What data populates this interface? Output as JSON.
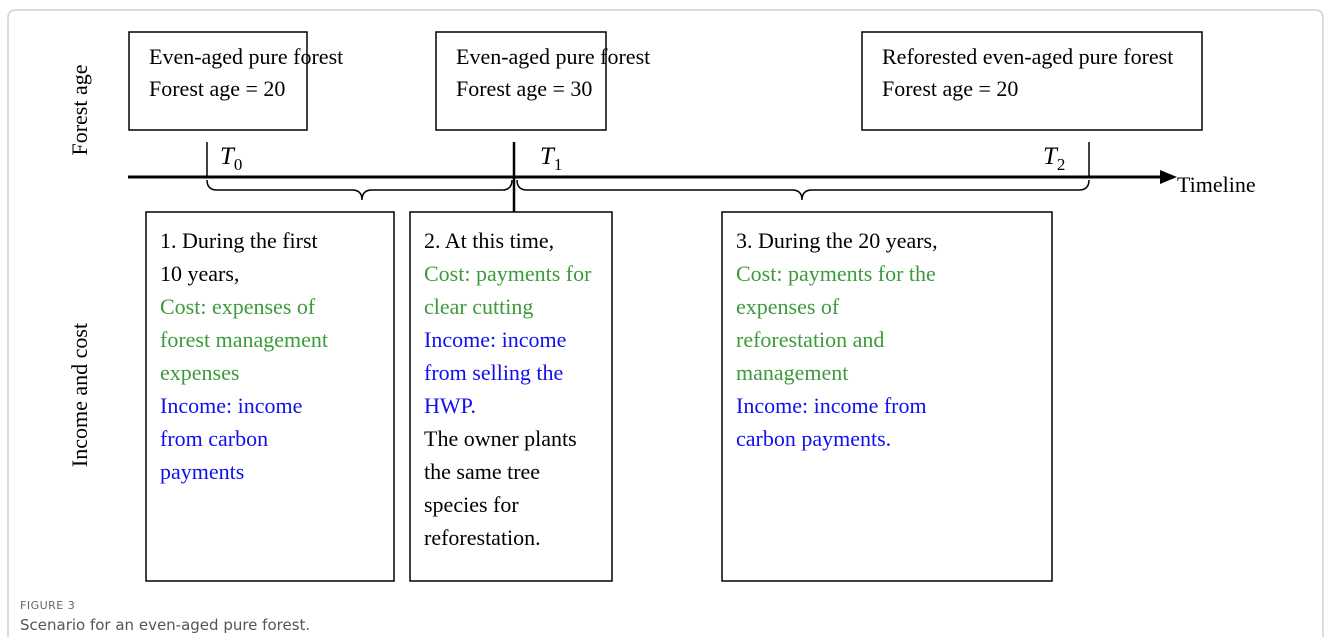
{
  "axis_labels": {
    "top": "Forest age",
    "bottom": "Income and cost"
  },
  "top_boxes": [
    {
      "lines": [
        "Even-aged pure forest",
        "Forest age = 20"
      ]
    },
    {
      "lines": [
        "Even-aged pure forest",
        "Forest age = 30"
      ]
    },
    {
      "lines": [
        "Reforested even-aged pure forest",
        "Forest age = 20"
      ]
    }
  ],
  "markers": [
    {
      "symbol": "T",
      "subscript": "0"
    },
    {
      "symbol": "T",
      "subscript": "1"
    },
    {
      "symbol": "T",
      "subscript": "2"
    }
  ],
  "timeline_label": "Timeline",
  "bottom_boxes": [
    {
      "lines": [
        {
          "text": "1. During the first",
          "color": "#000000"
        },
        {
          "text": "10 years,",
          "color": "#000000"
        },
        {
          "text": "Cost: expenses of",
          "color": "#3c9a3c"
        },
        {
          "text": "forest management",
          "color": "#3c9a3c"
        },
        {
          "text": "expenses",
          "color": "#3c9a3c"
        },
        {
          "text": "Income: income",
          "color": "#1010ee"
        },
        {
          "text": "from carbon",
          "color": "#1010ee"
        },
        {
          "text": "payments",
          "color": "#1010ee"
        }
      ]
    },
    {
      "lines": [
        {
          "text": "2. At this time,",
          "color": "#000000"
        },
        {
          "text": "Cost: payments for",
          "color": "#3c9a3c"
        },
        {
          "text": "clear cutting",
          "color": "#3c9a3c"
        },
        {
          "text": "Income: income",
          "color": "#1010ee"
        },
        {
          "text": "from selling the",
          "color": "#1010ee"
        },
        {
          "text": "HWP.",
          "color": "#1010ee"
        },
        {
          "text": "The owner plants",
          "color": "#000000"
        },
        {
          "text": "the same tree",
          "color": "#000000"
        },
        {
          "text": "species for",
          "color": "#000000"
        },
        {
          "text": "reforestation.",
          "color": "#000000"
        }
      ]
    },
    {
      "lines": [
        {
          "text": "3. During the 20 years,",
          "color": "#000000"
        },
        {
          "text": "Cost: payments for the",
          "color": "#3c9a3c"
        },
        {
          "text": "expenses of",
          "color": "#3c9a3c"
        },
        {
          "text": "reforestation and",
          "color": "#3c9a3c"
        },
        {
          "text": "management",
          "color": "#3c9a3c"
        },
        {
          "text": "Income: income from",
          "color": "#1010ee"
        },
        {
          "text": "carbon payments.",
          "color": "#1010ee"
        }
      ]
    }
  ],
  "caption": {
    "label": "FIGURE 3",
    "text": "Scenario for an even-aged pure forest."
  }
}
